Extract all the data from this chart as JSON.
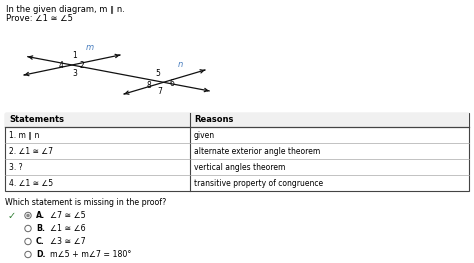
{
  "title_line1": "In the given diagram, m ∥ n.",
  "title_line2": "Prove: ∠1 ≅ ∠5",
  "line_label_m": "m",
  "line_label_n": "n",
  "table_headers": [
    "Statements",
    "Reasons"
  ],
  "table_rows": [
    [
      "1. m ∥ n",
      "given"
    ],
    [
      "2. ∠1 ≅ ∠7",
      "alternate exterior angle theorem"
    ],
    [
      "3. ?",
      "vertical angles theorem"
    ],
    [
      "4. ∠1 ≅ ∠5",
      "transitive property of congruence"
    ]
  ],
  "question": "Which statement is missing in the proof?",
  "choices": [
    "∠7 ≅ ∠5",
    "∠1 ≅ ∠6",
    "∠3 ≅ ∠7",
    "m∠5 + m∠7 = 180°"
  ],
  "choice_labels": [
    "A.",
    "B.",
    "C.",
    "D."
  ],
  "correct_choice": 0,
  "bg_color": "#ffffff",
  "text_color": "#000000",
  "check_color": "#2e7d32",
  "line_color": "#111111",
  "label_color_m": "#4a7fbf",
  "label_color_n": "#4a7fbf"
}
